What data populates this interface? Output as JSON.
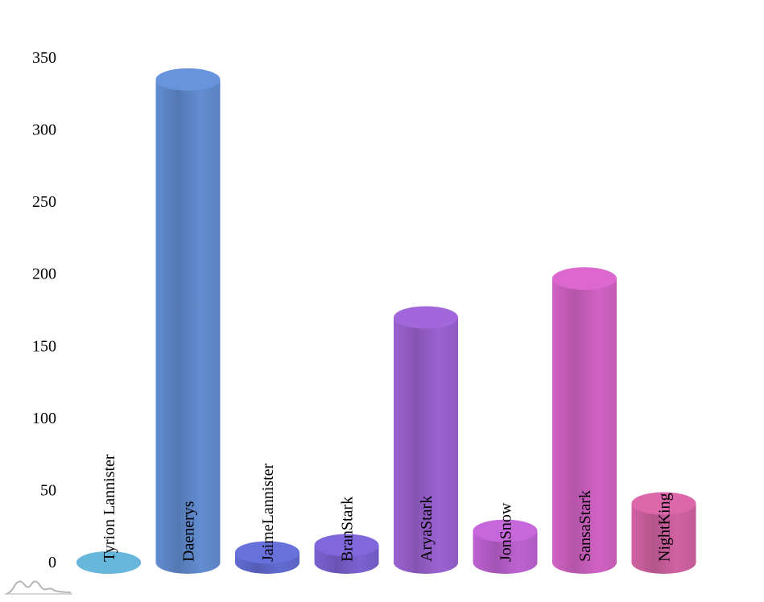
{
  "chart_data": {
    "type": "bar",
    "style": "3d-cylinder",
    "categories": [
      "Tyrion Lannister",
      "Daenerys",
      "JaimeLannister",
      "BranStark",
      "AryaStark",
      "JonSnow",
      "SansaStark",
      "NightKing"
    ],
    "values": [
      0,
      335,
      7,
      12,
      170,
      22,
      197,
      41
    ],
    "colors": [
      "#67b7dc",
      "#6794dc",
      "#6771dc",
      "#8067dc",
      "#a367dc",
      "#c767dc",
      "#dc67ce",
      "#dc67ab"
    ],
    "y_ticks": [
      "0",
      "50",
      "100",
      "150",
      "200",
      "250",
      "300",
      "350"
    ],
    "ylim": [
      0,
      350
    ],
    "grid": false,
    "legend": "none"
  },
  "icons": {
    "logo": "amcharts-logo-icon"
  }
}
